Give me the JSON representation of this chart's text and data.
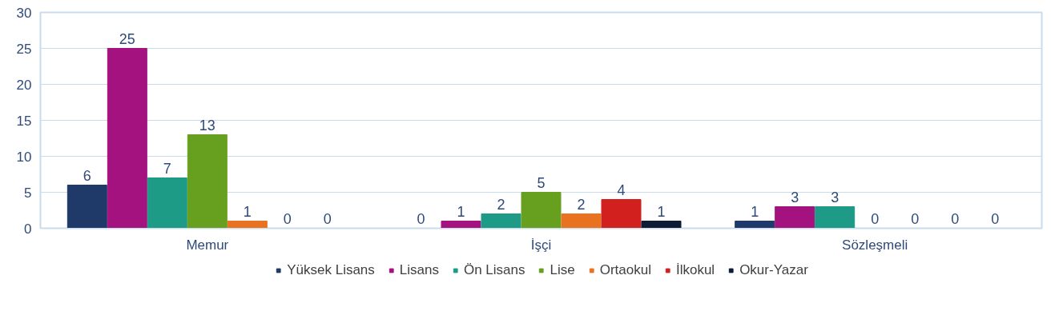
{
  "chart_data": {
    "type": "bar",
    "categories": [
      "Memur",
      "İşçi",
      "Sözleşmeli"
    ],
    "series": [
      {
        "name": "Yüksek Lisans",
        "color": "#1f3a68",
        "values": [
          6,
          0,
          1
        ]
      },
      {
        "name": "Lisans",
        "color": "#a3127f",
        "values": [
          25,
          1,
          3
        ]
      },
      {
        "name": "Ön Lisans",
        "color": "#1e9b86",
        "values": [
          7,
          2,
          3
        ]
      },
      {
        "name": "Lise",
        "color": "#67a01f",
        "values": [
          13,
          5,
          0
        ]
      },
      {
        "name": "Ortaokul",
        "color": "#e8721f",
        "values": [
          1,
          2,
          0
        ]
      },
      {
        "name": "İlkokul",
        "color": "#d2201f",
        "values": [
          0,
          4,
          0
        ]
      },
      {
        "name": "Okur-Yazar",
        "color": "#0d1b35",
        "values": [
          0,
          1,
          0
        ]
      }
    ],
    "ylim": [
      0,
      30
    ],
    "yticks": [
      0,
      5,
      10,
      15,
      20,
      25,
      30
    ],
    "grid": "y",
    "legend": "bottom",
    "data_labels": true
  }
}
